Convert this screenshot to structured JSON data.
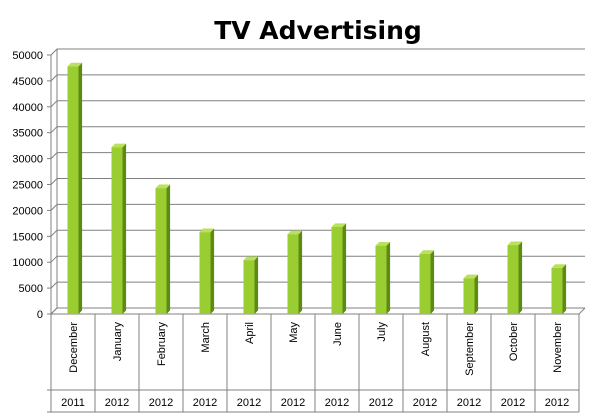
{
  "chart_data": {
    "type": "bar",
    "title": "TV Advertising",
    "xlabel": "",
    "ylabel": "",
    "ylim": [
      0,
      50000
    ],
    "yticks": [
      0,
      5000,
      10000,
      15000,
      20000,
      25000,
      30000,
      35000,
      40000,
      45000,
      50000
    ],
    "grid": true,
    "legend": "none",
    "categories": [
      "December",
      "January",
      "February",
      "March",
      "April",
      "May",
      "June",
      "July",
      "August",
      "September",
      "October",
      "November"
    ],
    "years": [
      "2011",
      "2012",
      "2012",
      "2012",
      "2012",
      "2012",
      "2012",
      "2012",
      "2012",
      "2012",
      "2012",
      "2012"
    ],
    "values": [
      47800,
      32200,
      24300,
      15800,
      10400,
      15400,
      16800,
      13200,
      11600,
      6900,
      13300,
      8900
    ],
    "colors": {
      "bar_front": "#9ACD32",
      "bar_side": "#5E8A14",
      "bar_top": "#B9E25A",
      "grid": "#808080"
    }
  }
}
